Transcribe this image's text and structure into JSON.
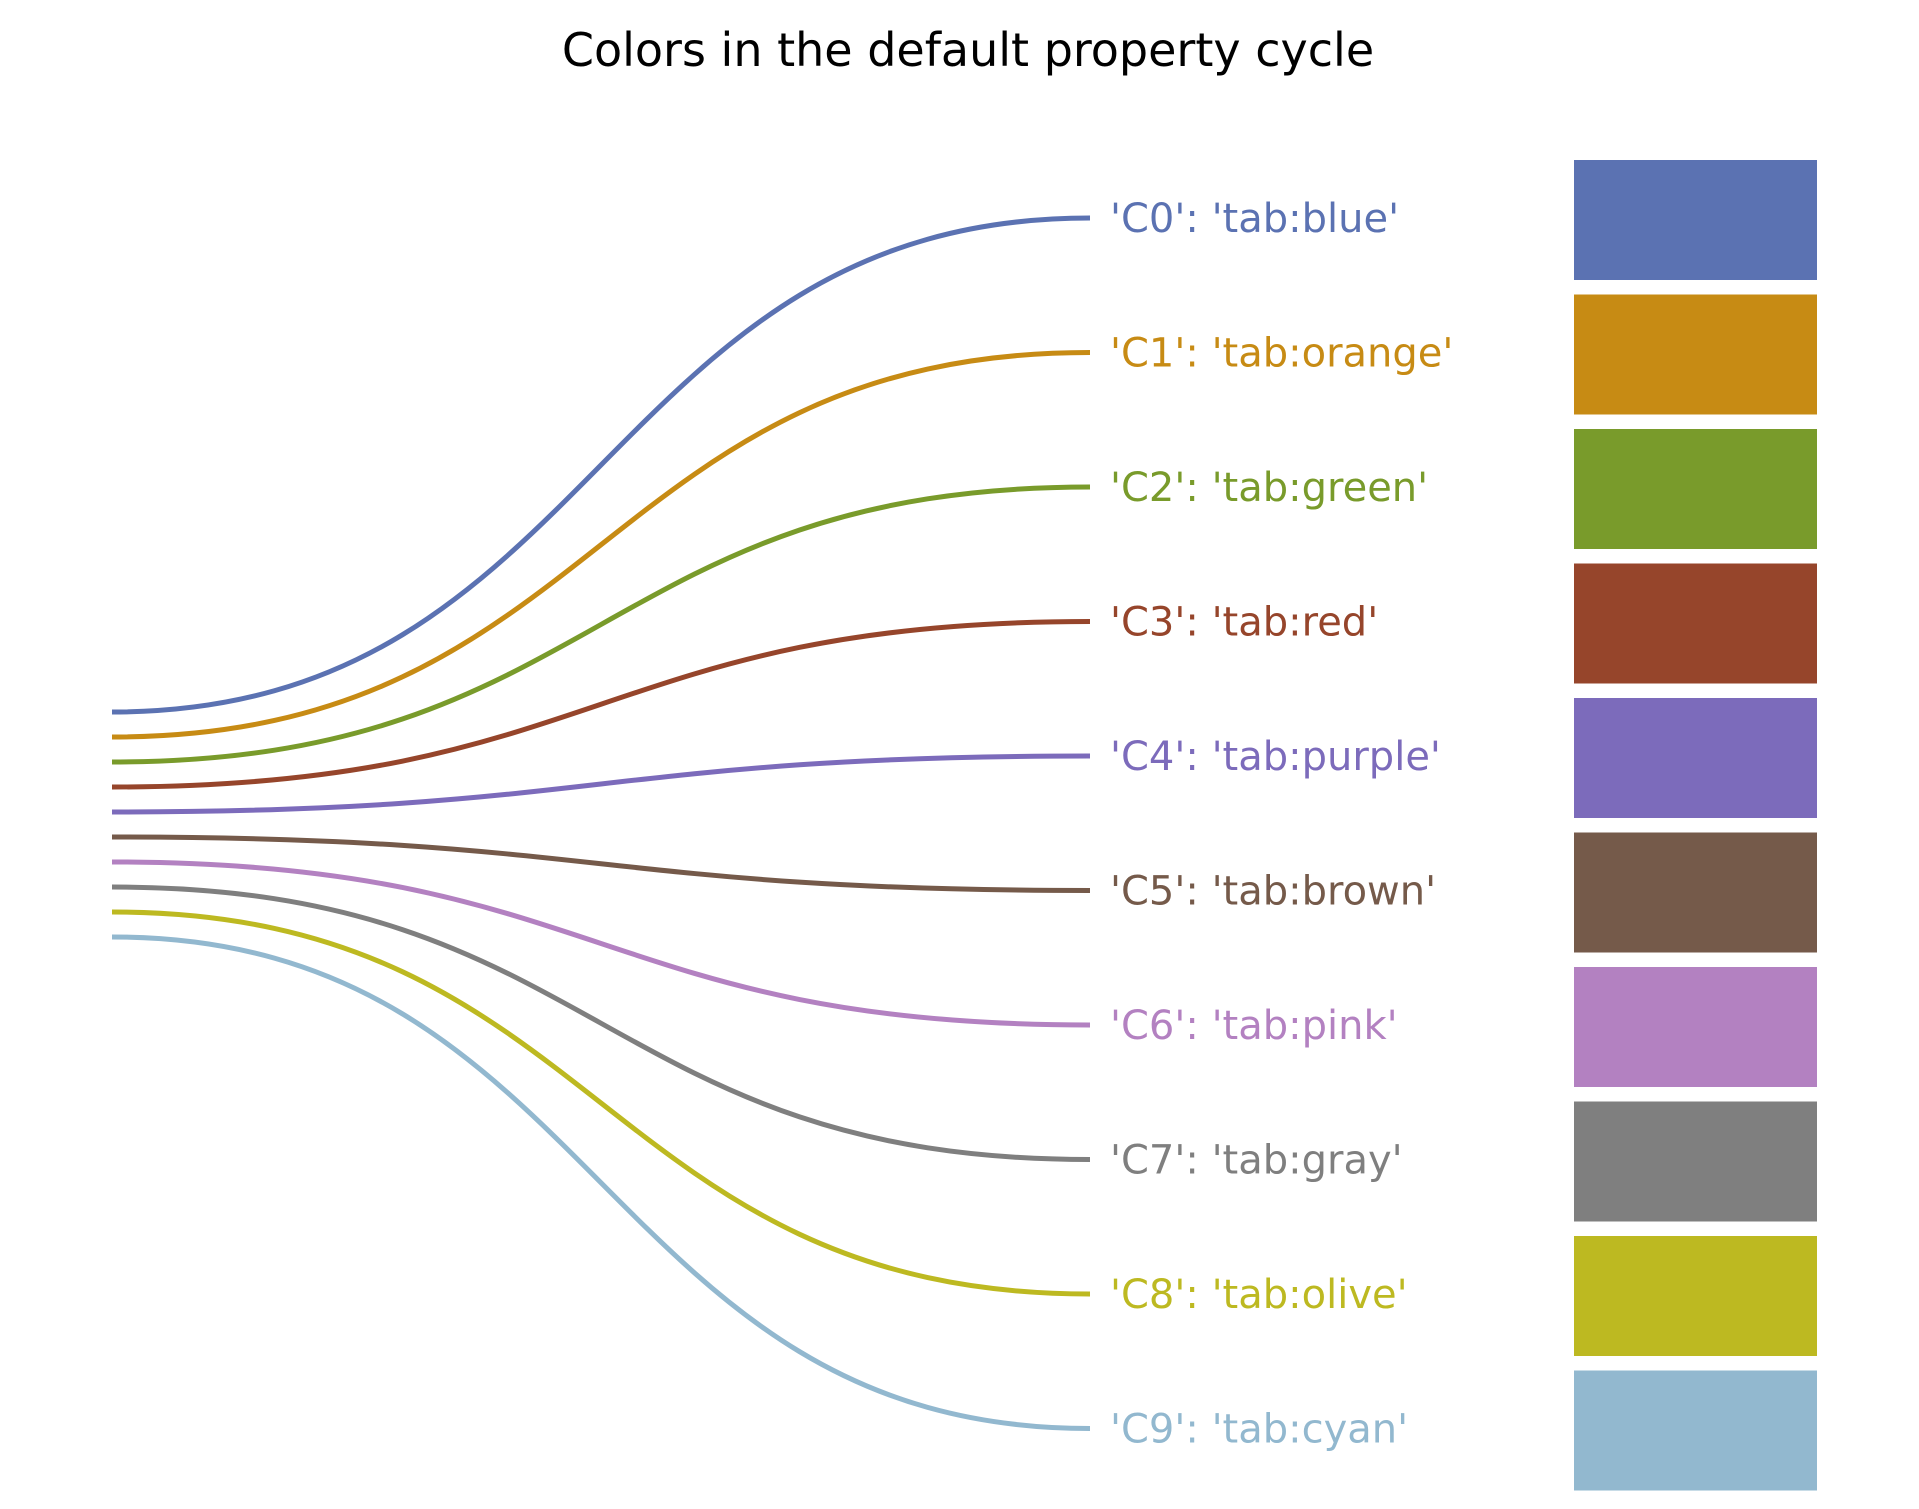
{
  "title": "Colors in the default property cycle",
  "items": [
    {
      "label": "'C0': 'tab:blue'",
      "color": "#5b72b2"
    },
    {
      "label": "'C1': 'tab:orange'",
      "color": "#c78b14"
    },
    {
      "label": "'C2': 'tab:green'",
      "color": "#799b2b"
    },
    {
      "label": "'C3': 'tab:red'",
      "color": "#96452b"
    },
    {
      "label": "'C4': 'tab:purple'",
      "color": "#7c6bbb"
    },
    {
      "label": "'C5': 'tab:brown'",
      "color": "#755a4a"
    },
    {
      "label": "'C6': 'tab:pink'",
      "color": "#b381c1"
    },
    {
      "label": "'C7': 'tab:gray'",
      "color": "#7f7f7f"
    },
    {
      "label": "'C8': 'tab:olive'",
      "color": "#bdb921"
    },
    {
      "label": "'C9': 'tab:cyan'",
      "color": "#92b8cf"
    }
  ]
}
